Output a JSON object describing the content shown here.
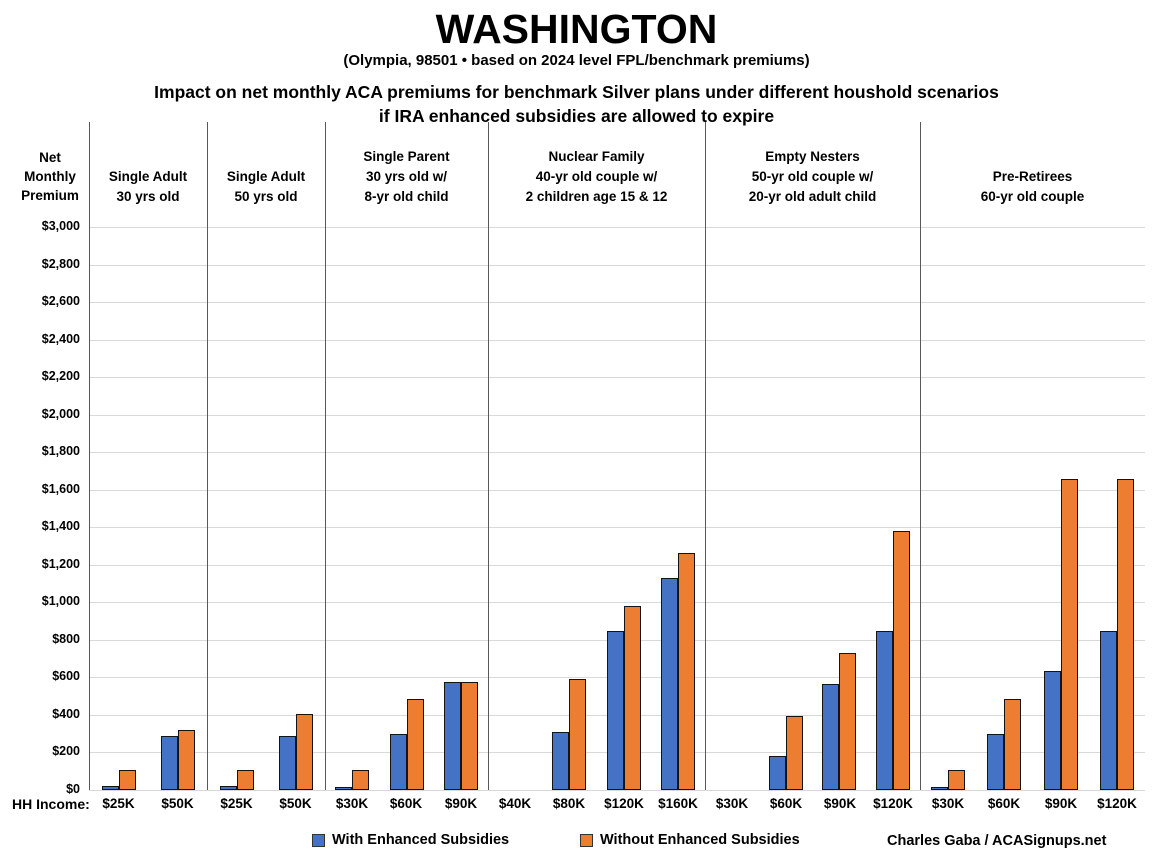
{
  "header": {
    "title": "WASHINGTON",
    "subtitle": "(Olympia, 98501 • based on 2024 level FPL/benchmark premiums)",
    "description_line1": "Impact on net monthly ACA premiums for benchmark Silver plans under different houshold scenarios",
    "description_line2": "if IRA enhanced subsidies are allowed to expire"
  },
  "axis": {
    "y_title_lines": [
      "Net",
      "Monthly",
      "Premium"
    ],
    "x_label": "HH Income:"
  },
  "legend": [
    {
      "label": "With Enhanced Subsidies",
      "color": "#4472C4"
    },
    {
      "label": "Without Enhanced Subsidies",
      "color": "#ED7D31"
    }
  ],
  "attribution": "Charles Gaba / ACASignups.net",
  "chart_data": {
    "type": "bar",
    "title": "WASHINGTON",
    "ylabel": "Net Monthly Premium",
    "xlabel": "HH Income",
    "ylim": [
      0,
      3000
    ],
    "ytick_step": 200,
    "ytick_format": "$#,##0",
    "grid": true,
    "legend_position": "bottom",
    "series_names": [
      "With Enhanced Subsidies",
      "Without Enhanced Subsidies"
    ],
    "series_colors": [
      "#4472C4",
      "#ED7D31"
    ],
    "groups": [
      {
        "header": [
          "Single Adult",
          "30 yrs old"
        ],
        "categories": [
          "$25K",
          "$50K"
        ],
        "series": [
          {
            "name": "With Enhanced Subsidies",
            "values": [
              20,
              290
            ]
          },
          {
            "name": "Without Enhanced Subsidies",
            "values": [
              105,
              320
            ]
          }
        ]
      },
      {
        "header": [
          "Single Adult",
          "50 yrs old"
        ],
        "categories": [
          "$25K",
          "$50K"
        ],
        "series": [
          {
            "name": "With Enhanced Subsidies",
            "values": [
              20,
              290
            ]
          },
          {
            "name": "Without Enhanced Subsidies",
            "values": [
              105,
              405
            ]
          }
        ]
      },
      {
        "header": [
          "Single Parent",
          "30 yrs old w/",
          "8-yr old child"
        ],
        "categories": [
          "$30K",
          "$60K",
          "$90K"
        ],
        "series": [
          {
            "name": "With Enhanced Subsidies",
            "values": [
              10,
              300,
              575
            ]
          },
          {
            "name": "Without Enhanced Subsidies",
            "values": [
              105,
              485,
              575
            ]
          }
        ]
      },
      {
        "header": [
          "Nuclear Family",
          "40-yr old couple w/",
          "2 children age 15 & 12"
        ],
        "categories": [
          "$40K",
          "$80K",
          "$120K",
          "$160K"
        ],
        "series": [
          {
            "name": "With Enhanced Subsidies",
            "values": [
              0,
              310,
              845,
              1130
            ]
          },
          {
            "name": "Without Enhanced Subsidies",
            "values": [
              0,
              590,
              980,
              1265
            ]
          }
        ]
      },
      {
        "header": [
          "Empty Nesters",
          "50-yr old couple w/",
          "20-yr old adult child"
        ],
        "categories": [
          "$30K",
          "$60K",
          "$90K",
          "$120K"
        ],
        "series": [
          {
            "name": "With Enhanced Subsidies",
            "values": [
              0,
              180,
              565,
              845
            ]
          },
          {
            "name": "Without Enhanced Subsidies",
            "values": [
              0,
              395,
              730,
              1380
            ]
          }
        ]
      },
      {
        "header": [
          "Pre-Retirees",
          "60-yr old couple"
        ],
        "categories": [
          "$30K",
          "$60K",
          "$90K",
          "$120K"
        ],
        "series": [
          {
            "name": "With Enhanced Subsidies",
            "values": [
              10,
              300,
              635,
              845
            ]
          },
          {
            "name": "Without Enhanced Subsidies",
            "values": [
              105,
              485,
              1655,
              1655
            ]
          }
        ]
      }
    ]
  }
}
